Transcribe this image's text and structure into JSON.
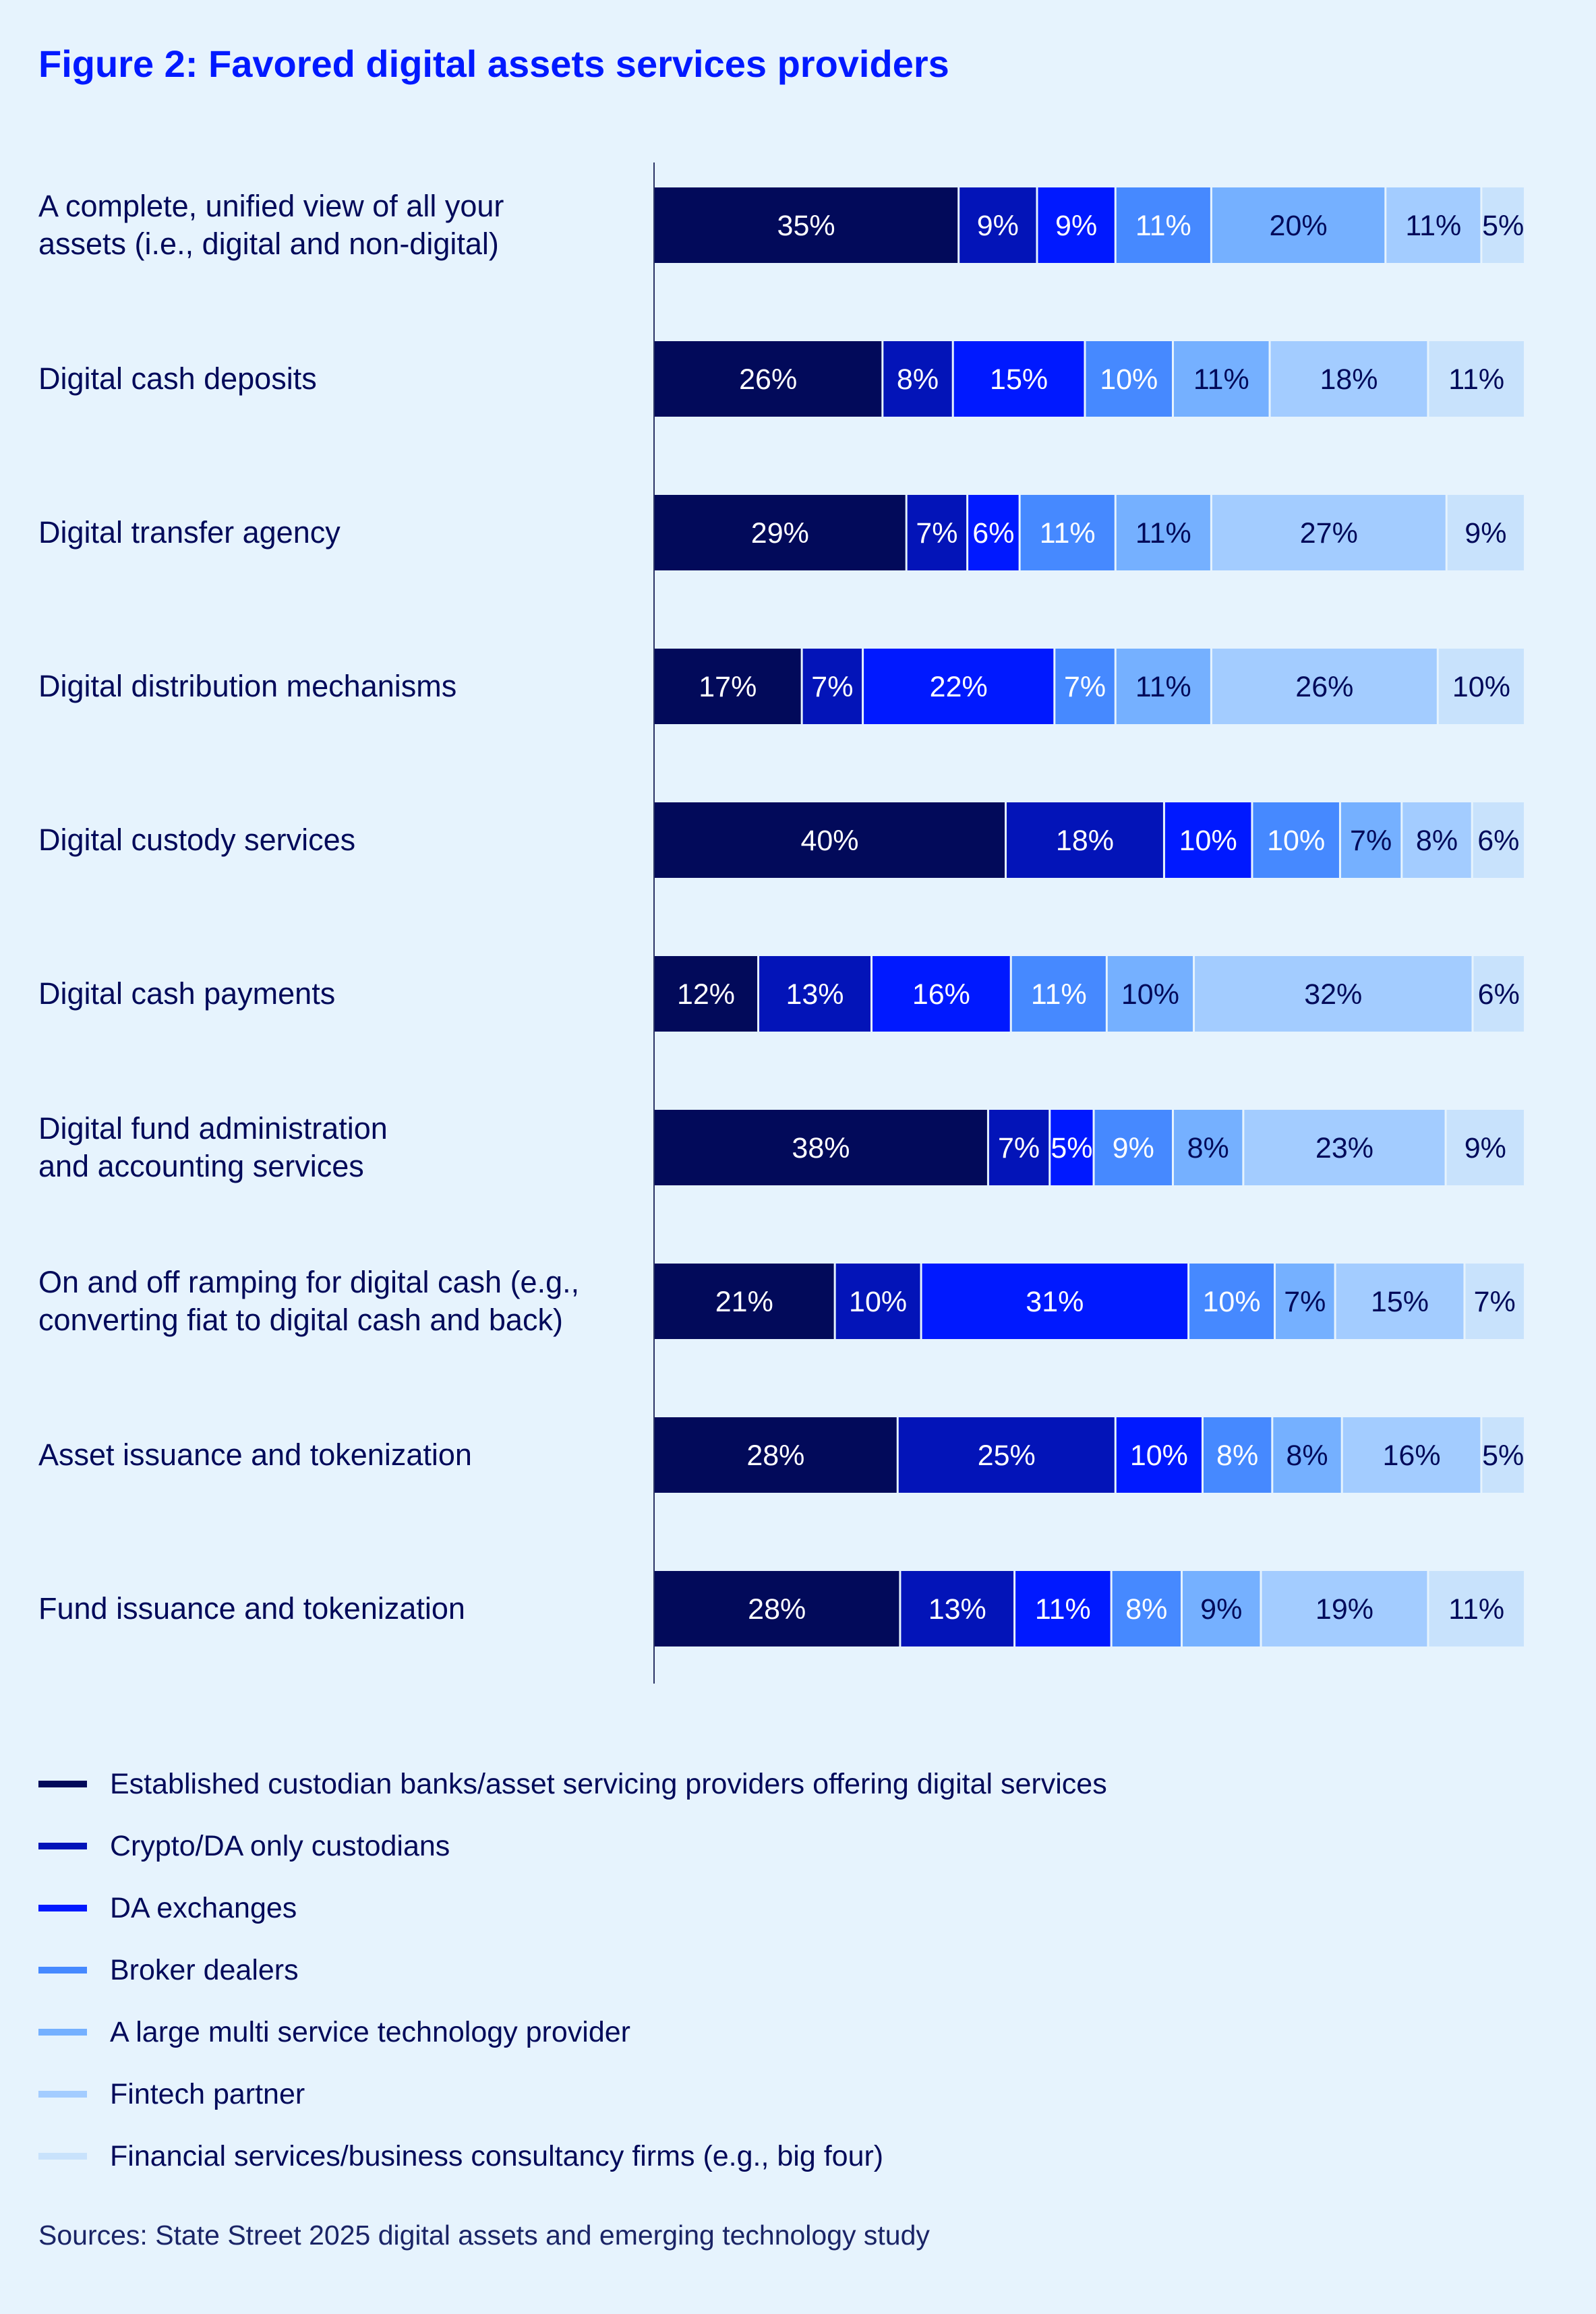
{
  "title": "Figure 2: Favored digital assets services providers",
  "chart_data": {
    "type": "bar",
    "orientation": "horizontal",
    "stacked": true,
    "title": "Figure 2: Favored digital assets services providers",
    "categories": [
      "A complete, unified view of all your assets (i.e., digital and non-digital)",
      "Digital cash deposits",
      "Digital transfer agency",
      "Digital distribution mechanisms",
      "Digital custody services",
      "Digital cash payments",
      "Digital fund administration and accounting services",
      "On and off ramping for digital cash (e.g., converting fiat to digital cash and back)",
      "Asset issuance and tokenization",
      "Fund issuance and tokenization"
    ],
    "category_lines": [
      [
        "A complete, unified view of all your",
        "assets (i.e., digital and non-digital)"
      ],
      [
        "Digital cash deposits"
      ],
      [
        "Digital transfer agency"
      ],
      [
        "Digital distribution mechanisms"
      ],
      [
        "Digital custody services"
      ],
      [
        "Digital cash payments"
      ],
      [
        "Digital fund administration",
        "and accounting services"
      ],
      [
        "On and off ramping for digital cash (e.g.,",
        "converting fiat to digital cash and back)"
      ],
      [
        "Asset issuance and tokenization"
      ],
      [
        "Fund issuance and tokenization"
      ]
    ],
    "series": [
      {
        "name": "Established custodian banks/asset servicing providers offering digital services",
        "color": "#020a5a",
        "label_color": "#ffffff",
        "values": [
          35,
          26,
          29,
          17,
          40,
          12,
          38,
          21,
          28,
          28
        ]
      },
      {
        "name": "Crypto/DA only custodians",
        "color": "#0314b8",
        "label_color": "#ffffff",
        "values": [
          9,
          8,
          7,
          7,
          18,
          13,
          7,
          10,
          25,
          13
        ]
      },
      {
        "name": "DA exchanges",
        "color": "#0019ff",
        "label_color": "#ffffff",
        "values": [
          9,
          15,
          6,
          22,
          10,
          16,
          5,
          31,
          10,
          11
        ]
      },
      {
        "name": "Broker dealers",
        "color": "#4689ff",
        "label_color": "#ffffff",
        "values": [
          11,
          10,
          11,
          7,
          10,
          11,
          9,
          10,
          8,
          8
        ]
      },
      {
        "name": "A large multi service technology provider",
        "color": "#75b0ff",
        "label_color": "#020a5a",
        "values": [
          20,
          11,
          11,
          11,
          7,
          10,
          8,
          7,
          8,
          9
        ]
      },
      {
        "name": "Fintech partner",
        "color": "#a3ccff",
        "label_color": "#020a5a",
        "values": [
          11,
          18,
          27,
          26,
          8,
          32,
          23,
          15,
          16,
          19
        ]
      },
      {
        "name": "Financial services/business consultancy firms (e.g., big four)",
        "color": "#c8e2fc",
        "label_color": "#020a5a",
        "values": [
          5,
          11,
          9,
          10,
          6,
          6,
          9,
          7,
          5,
          11
        ]
      }
    ],
    "value_suffix": "%",
    "legend_position": "bottom",
    "grid": false
  },
  "source": "Sources: State Street 2025 digital assets and emerging technology study"
}
